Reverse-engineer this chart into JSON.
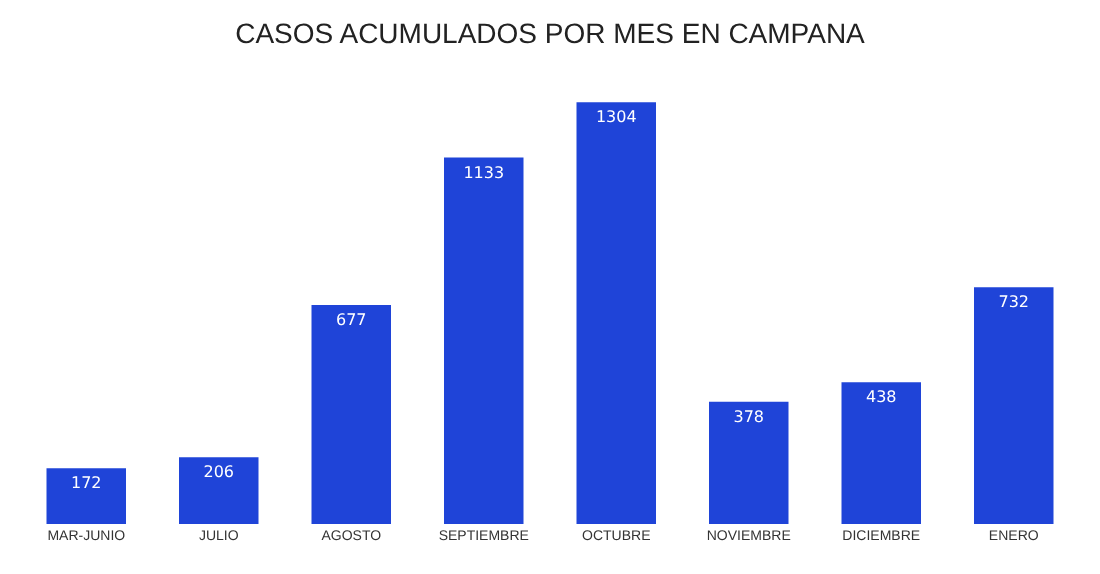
{
  "chart_data": {
    "type": "bar",
    "title": "CASOS ACUMULADOS POR MES EN CAMPANA",
    "categories": [
      "MAR-JUNIO",
      "JULIO",
      "AGOSTO",
      "SEPTIEMBRE",
      "OCTUBRE",
      "NOVIEMBRE",
      "DICIEMBRE",
      "ENERO"
    ],
    "values": [
      172,
      206,
      677,
      1133,
      1304,
      378,
      438,
      732
    ],
    "color": "#1f44d8",
    "data_labels": true
  }
}
